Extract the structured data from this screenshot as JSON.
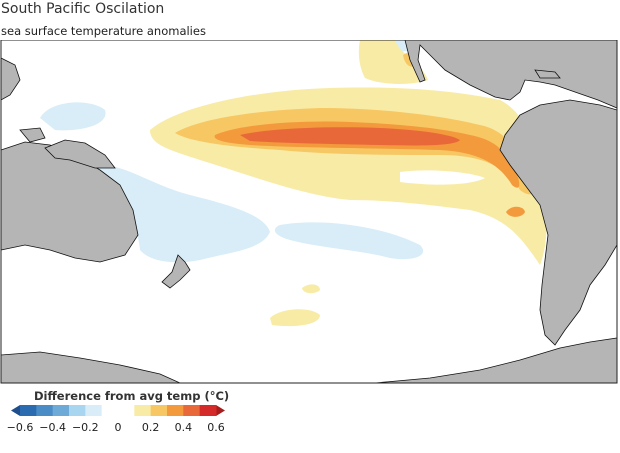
{
  "title": "South Pacific Oscilation",
  "subtitle": "sea surface temperature anomalies",
  "legend": {
    "title": "Difference from avg temp (°C)",
    "ticks": [
      "−0.6",
      "−0.4",
      "−0.2",
      "0",
      "0.2",
      "0.4",
      "0.6"
    ],
    "bins": [
      {
        "from": -0.6,
        "to": -0.5,
        "color": "#2b6cb0"
      },
      {
        "from": -0.5,
        "to": -0.4,
        "color": "#4a8cc6"
      },
      {
        "from": -0.4,
        "to": -0.3,
        "color": "#6eaad8"
      },
      {
        "from": -0.3,
        "to": -0.2,
        "color": "#a8d6f0"
      },
      {
        "from": -0.2,
        "to": -0.1,
        "color": "#d8edf8"
      },
      {
        "from": -0.1,
        "to": 0.1,
        "color": "#ffffff"
      },
      {
        "from": 0.1,
        "to": 0.2,
        "color": "#f8eba6"
      },
      {
        "from": 0.2,
        "to": 0.3,
        "color": "#f7c763"
      },
      {
        "from": 0.3,
        "to": 0.4,
        "color": "#f29a3c"
      },
      {
        "from": 0.4,
        "to": 0.5,
        "color": "#e8683a"
      },
      {
        "from": 0.5,
        "to": 0.6,
        "color": "#d42a2a"
      }
    ],
    "below_color": "#1f4e8c",
    "above_color": "#a51d1d"
  },
  "map": {
    "land_color": "#b5b5b5",
    "ocean_color": "#ffffff"
  }
}
